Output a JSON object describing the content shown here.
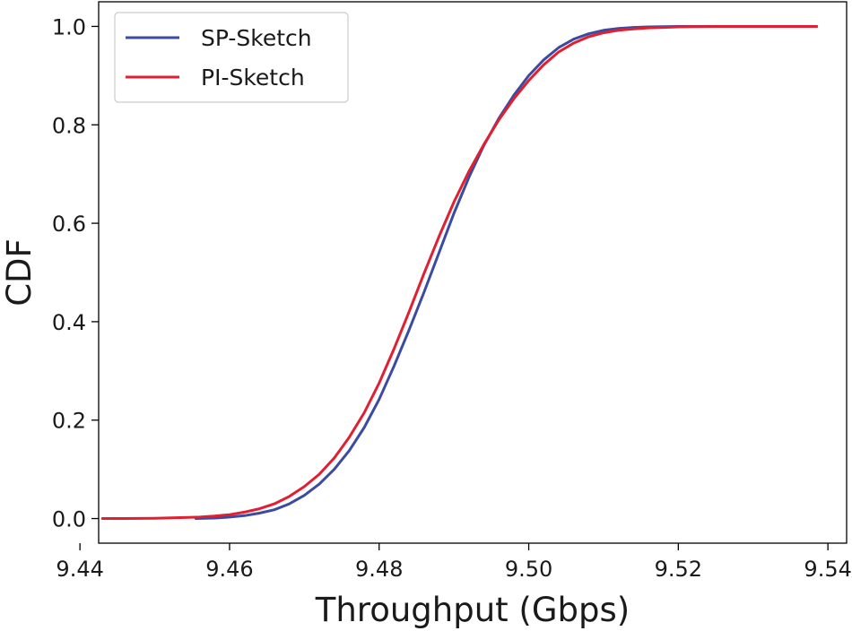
{
  "chart_data": {
    "type": "line",
    "title": "",
    "xlabel": "Throughput (Gbps)",
    "ylabel": "CDF",
    "xlim": [
      9.4425,
      9.5425
    ],
    "ylim": [
      -0.05,
      1.05
    ],
    "xticks": [
      9.44,
      9.46,
      9.48,
      9.5,
      9.52,
      9.54
    ],
    "xtick_labels": [
      "9.44",
      "9.46",
      "9.48",
      "9.50",
      "9.52",
      "9.54"
    ],
    "yticks": [
      0.0,
      0.2,
      0.4,
      0.6,
      0.8,
      1.0
    ],
    "ytick_labels": [
      "0.0",
      "0.2",
      "0.4",
      "0.6",
      "0.8",
      "1.0"
    ],
    "grid": false,
    "legend_position": "top-left",
    "series": [
      {
        "name": "SP-Sketch",
        "color": "#3a4ba0",
        "x": [
          9.4555,
          9.458,
          9.46,
          9.462,
          9.464,
          9.466,
          9.468,
          9.47,
          9.472,
          9.474,
          9.476,
          9.478,
          9.48,
          9.482,
          9.484,
          9.486,
          9.488,
          9.49,
          9.492,
          9.494,
          9.496,
          9.498,
          9.5,
          9.502,
          9.504,
          9.506,
          9.508,
          9.51,
          9.512,
          9.514,
          9.516,
          9.518,
          9.52,
          9.522,
          9.525,
          9.53,
          9.535,
          9.5385
        ],
        "y": [
          0.0,
          0.001,
          0.003,
          0.006,
          0.011,
          0.018,
          0.03,
          0.047,
          0.07,
          0.1,
          0.138,
          0.185,
          0.242,
          0.31,
          0.383,
          0.46,
          0.54,
          0.62,
          0.693,
          0.758,
          0.813,
          0.86,
          0.9,
          0.932,
          0.957,
          0.974,
          0.985,
          0.992,
          0.996,
          0.998,
          0.999,
          0.9995,
          1.0,
          1.0,
          1.0,
          1.0,
          1.0,
          1.0
        ]
      },
      {
        "name": "PI-Sketch",
        "color": "#e02030",
        "x": [
          9.443,
          9.446,
          9.45,
          9.454,
          9.456,
          9.458,
          9.46,
          9.462,
          9.464,
          9.466,
          9.468,
          9.47,
          9.472,
          9.474,
          9.476,
          9.478,
          9.48,
          9.482,
          9.484,
          9.486,
          9.488,
          9.49,
          9.492,
          9.494,
          9.496,
          9.498,
          9.5,
          9.502,
          9.504,
          9.506,
          9.508,
          9.51,
          9.512,
          9.514,
          9.516,
          9.518,
          9.52,
          9.522,
          9.525,
          9.53,
          9.535,
          9.5385
        ],
        "y": [
          0.0,
          0.0,
          0.0005,
          0.002,
          0.003,
          0.005,
          0.008,
          0.013,
          0.02,
          0.03,
          0.045,
          0.065,
          0.09,
          0.123,
          0.165,
          0.215,
          0.275,
          0.345,
          0.42,
          0.498,
          0.573,
          0.643,
          0.705,
          0.76,
          0.81,
          0.853,
          0.89,
          0.922,
          0.948,
          0.966,
          0.979,
          0.987,
          0.992,
          0.995,
          0.997,
          0.998,
          0.999,
          0.9995,
          1.0,
          1.0,
          1.0,
          1.0
        ]
      }
    ]
  }
}
